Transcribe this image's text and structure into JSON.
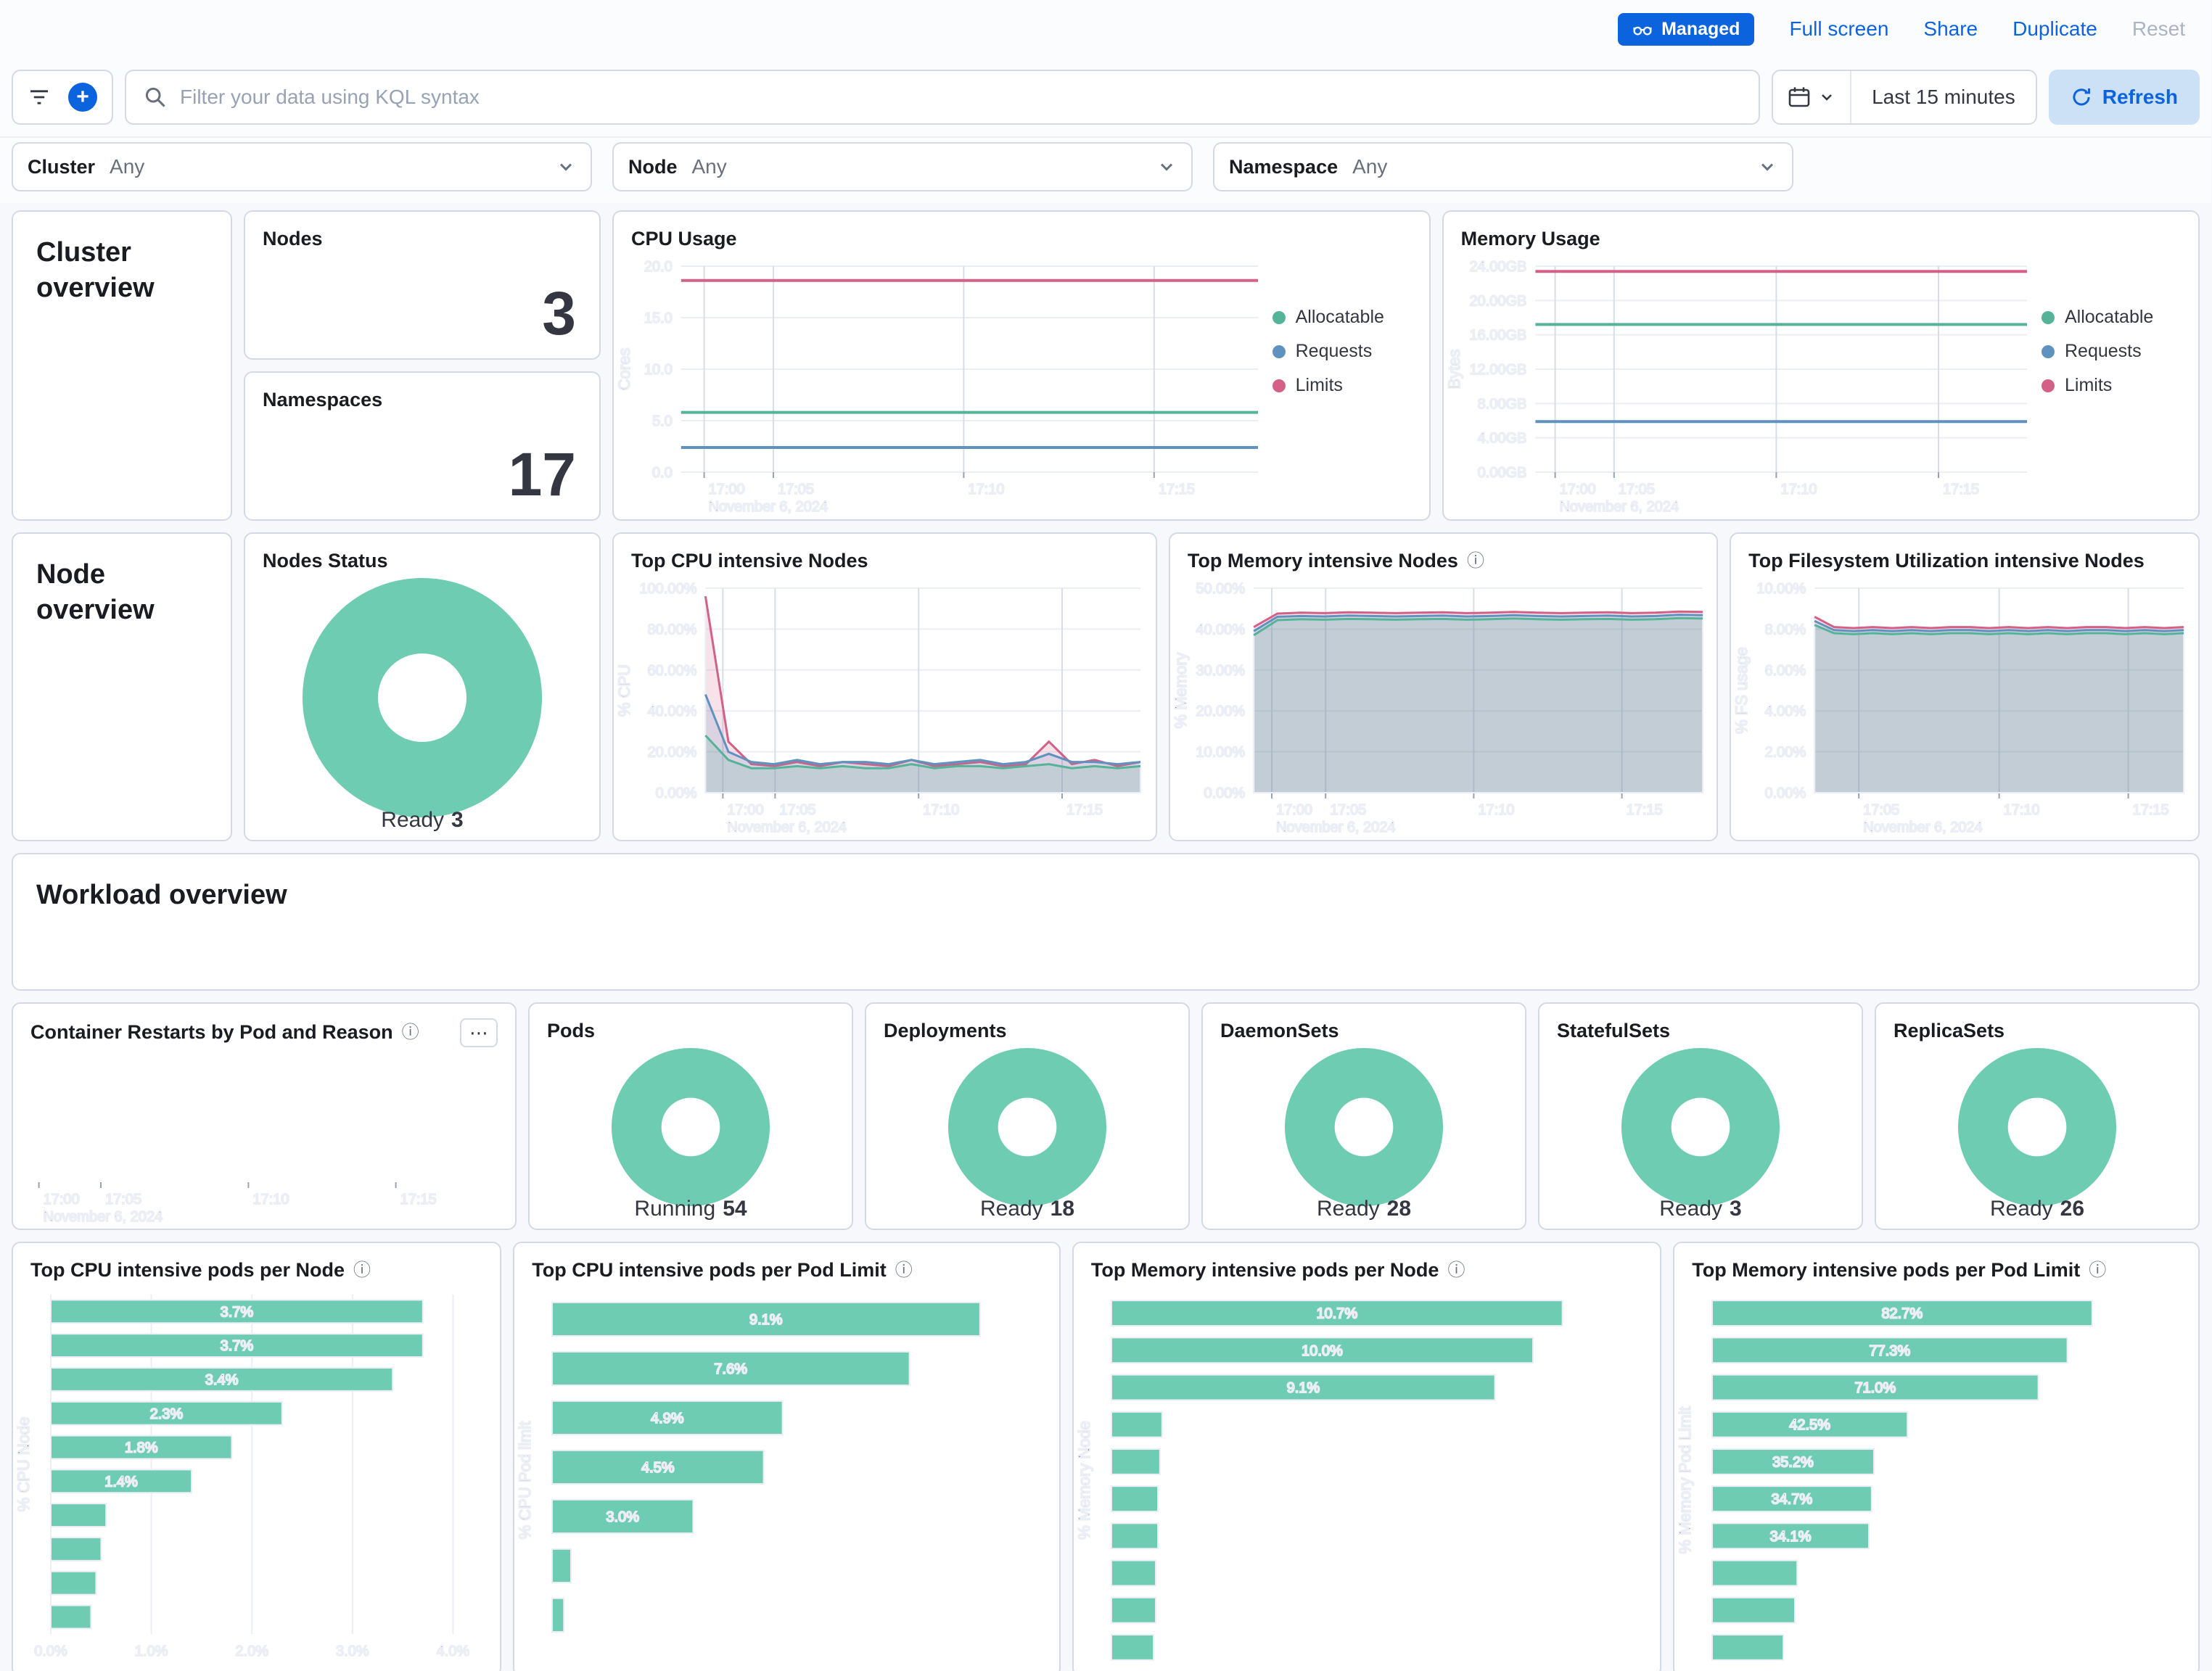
{
  "topbar": {
    "managed": "Managed",
    "full_screen": "Full screen",
    "share": "Share",
    "duplicate": "Duplicate",
    "reset": "Reset"
  },
  "querybar": {
    "placeholder": "Filter your data using KQL syntax",
    "time_range": "Last 15 minutes",
    "refresh": "Refresh"
  },
  "filters": [
    {
      "label": "Cluster",
      "value": "Any"
    },
    {
      "label": "Node",
      "value": "Any"
    },
    {
      "label": "Namespace",
      "value": "Any"
    }
  ],
  "sections": {
    "cluster": "Cluster overview",
    "node": "Node overview",
    "workload": "Workload overview"
  },
  "stats": [
    {
      "title": "Nodes",
      "value": "3"
    },
    {
      "title": "Namespaces",
      "value": "17"
    }
  ],
  "icons": {
    "info": "ⓘ",
    "options": "⋯"
  },
  "colors": {
    "accent_blue": "#0B64DD",
    "green": "#6DCCB1",
    "allocatable": "#54B399",
    "requests": "#6092C0",
    "limits": "#D36086"
  },
  "chart_data": [
    {
      "id": "cpu_usage",
      "type": "line",
      "title": "CPU Usage",
      "ylabel": "Cores",
      "ymax": 20,
      "yticks": [
        {
          "v": 20,
          "label": "20.0"
        },
        {
          "v": 15,
          "label": "15.0"
        },
        {
          "v": 10,
          "label": "10.0"
        },
        {
          "v": 5,
          "label": "5.0"
        },
        {
          "v": 0,
          "label": "0.0"
        }
      ],
      "xticks": [
        {
          "f": 0.04,
          "label": "17:00"
        },
        {
          "f": 0.16,
          "label": "17:05"
        },
        {
          "f": 0.49,
          "label": "17:10"
        },
        {
          "f": 0.82,
          "label": "17:15"
        }
      ],
      "xsub": "November 6, 2024",
      "series": [
        {
          "name": "Allocatable",
          "color": "#54B399",
          "value": 5.8
        },
        {
          "name": "Requests",
          "color": "#6092C0",
          "value": 2.4
        },
        {
          "name": "Limits",
          "color": "#D36086",
          "value": 18.6
        }
      ]
    },
    {
      "id": "memory_usage",
      "type": "line",
      "title": "Memory Usage",
      "ylabel": "Bytes",
      "ymax": 24,
      "yticks": [
        {
          "v": 24,
          "label": "24.00GB"
        },
        {
          "v": 20,
          "label": "20.00GB"
        },
        {
          "v": 16,
          "label": "16.00GB"
        },
        {
          "v": 12,
          "label": "12.00GB"
        },
        {
          "v": 8,
          "label": "8.00GB"
        },
        {
          "v": 4,
          "label": "4.00GB"
        },
        {
          "v": 0,
          "label": "0.00GB"
        }
      ],
      "xticks": [
        {
          "f": 0.04,
          "label": "17:00"
        },
        {
          "f": 0.16,
          "label": "17:05"
        },
        {
          "f": 0.49,
          "label": "17:10"
        },
        {
          "f": 0.82,
          "label": "17:15"
        }
      ],
      "xsub": "November 6, 2024",
      "series": [
        {
          "name": "Allocatable",
          "color": "#54B399",
          "value": 17.2
        },
        {
          "name": "Requests",
          "color": "#6092C0",
          "value": 5.9
        },
        {
          "name": "Limits",
          "color": "#D36086",
          "value": 23.4
        }
      ]
    },
    {
      "id": "nodes_status",
      "type": "donut",
      "title": "Nodes Status",
      "label": "Ready",
      "value": 3,
      "color": "#6DCCB1"
    },
    {
      "id": "top_cpu_nodes",
      "type": "area",
      "title": "Top CPU intensive Nodes",
      "ylabel": "% CPU",
      "ymax": 100,
      "yticks": [
        {
          "v": 100,
          "label": "100.00%"
        },
        {
          "v": 80,
          "label": "80.00%"
        },
        {
          "v": 60,
          "label": "60.00%"
        },
        {
          "v": 40,
          "label": "40.00%"
        },
        {
          "v": 20,
          "label": "20.00%"
        },
        {
          "v": 0,
          "label": "0.00%"
        }
      ],
      "xticks": [
        {
          "f": 0.04,
          "label": "17:00"
        },
        {
          "f": 0.16,
          "label": "17:05"
        },
        {
          "f": 0.49,
          "label": "17:10"
        },
        {
          "f": 0.82,
          "label": "17:15"
        }
      ],
      "xsub": "November 6, 2024",
      "series": [
        {
          "color": "#D36086",
          "values": [
            96,
            25,
            14,
            13,
            15,
            13,
            15,
            14,
            13,
            16,
            13,
            14,
            15,
            13,
            14,
            25,
            14,
            16,
            13,
            15
          ]
        },
        {
          "color": "#6092C0",
          "values": [
            48,
            20,
            15,
            14,
            16,
            14,
            15,
            15,
            14,
            16,
            14,
            15,
            16,
            14,
            15,
            19,
            15,
            15,
            14,
            15
          ]
        },
        {
          "color": "#54B399",
          "values": [
            28,
            16,
            12,
            12,
            13,
            12,
            13,
            12,
            12,
            14,
            12,
            13,
            13,
            12,
            13,
            14,
            12,
            13,
            12,
            13
          ]
        }
      ]
    },
    {
      "id": "top_memory_nodes",
      "type": "area",
      "title": "Top Memory intensive Nodes",
      "ylabel": "% Memory",
      "ymax": 50,
      "yticks": [
        {
          "v": 50,
          "label": "50.00%"
        },
        {
          "v": 40,
          "label": "40.00%"
        },
        {
          "v": 30,
          "label": "30.00%"
        },
        {
          "v": 20,
          "label": "20.00%"
        },
        {
          "v": 10,
          "label": "10.00%"
        },
        {
          "v": 0,
          "label": "0.00%"
        }
      ],
      "xticks": [
        {
          "f": 0.04,
          "label": "17:00"
        },
        {
          "f": 0.16,
          "label": "17:05"
        },
        {
          "f": 0.49,
          "label": "17:10"
        },
        {
          "f": 0.82,
          "label": "17:15"
        }
      ],
      "xsub": "November 6, 2024",
      "series": [
        {
          "color": "#D36086",
          "values": [
            40.5,
            43.8,
            44,
            43.9,
            44.1,
            44,
            43.9,
            44,
            44.1,
            43.9,
            44,
            44.2,
            44,
            43.9,
            44,
            44.1,
            43.9,
            44,
            44.3,
            44.2
          ]
        },
        {
          "color": "#6092C0",
          "values": [
            39.5,
            43,
            43.2,
            43.1,
            43.3,
            43.2,
            43.1,
            43.2,
            43.3,
            43.1,
            43.2,
            43.4,
            43.2,
            43.1,
            43.2,
            43.3,
            43.1,
            43.2,
            43.5,
            43.4
          ]
        },
        {
          "color": "#54B399",
          "values": [
            38.5,
            42.2,
            42.4,
            42.3,
            42.5,
            42.4,
            42.3,
            42.4,
            42.5,
            42.3,
            42.4,
            42.6,
            42.4,
            42.3,
            42.4,
            42.5,
            42.3,
            42.4,
            42.7,
            42.6
          ]
        }
      ]
    },
    {
      "id": "top_fs_nodes",
      "type": "area",
      "title": "Top Filesystem Utilization intensive Nodes",
      "ylabel": "% FS usage",
      "ymax": 10,
      "yticks": [
        {
          "v": 10,
          "label": "10.00%"
        },
        {
          "v": 8,
          "label": "8.00%"
        },
        {
          "v": 6,
          "label": "6.00%"
        },
        {
          "v": 4,
          "label": "4.00%"
        },
        {
          "v": 2,
          "label": "2.00%"
        },
        {
          "v": 0,
          "label": "0.00%"
        }
      ],
      "xticks": [
        {
          "f": 0.12,
          "label": "17:05"
        },
        {
          "f": 0.5,
          "label": "17:10"
        },
        {
          "f": 0.85,
          "label": "17:15"
        }
      ],
      "xsub": "November 6, 2024",
      "series": [
        {
          "color": "#D36086",
          "values": [
            8.6,
            8.1,
            8.05,
            8.1,
            8.05,
            8.1,
            8.05,
            8.1,
            8.1,
            8.05,
            8.1,
            8.05,
            8.1,
            8.05,
            8.1,
            8.1,
            8.05,
            8.1,
            8.05,
            8.1
          ]
        },
        {
          "color": "#6092C0",
          "values": [
            8.4,
            7.95,
            7.9,
            7.95,
            7.9,
            7.95,
            7.9,
            7.95,
            7.95,
            7.9,
            7.95,
            7.9,
            7.95,
            7.9,
            7.95,
            7.95,
            7.9,
            7.95,
            7.9,
            7.95
          ]
        },
        {
          "color": "#54B399",
          "values": [
            8.2,
            7.8,
            7.75,
            7.8,
            7.75,
            7.8,
            7.75,
            7.8,
            7.8,
            7.75,
            7.8,
            7.75,
            7.8,
            7.75,
            7.8,
            7.8,
            7.75,
            7.8,
            7.75,
            7.8
          ]
        }
      ]
    },
    {
      "id": "container_restarts",
      "type": "line",
      "title": "Container Restarts by Pod and Reason",
      "ymax": 1,
      "yticks": [],
      "xticks": [
        {
          "f": 0.03,
          "label": "17:00"
        },
        {
          "f": 0.16,
          "label": "17:05"
        },
        {
          "f": 0.47,
          "label": "17:10"
        },
        {
          "f": 0.78,
          "label": "17:15"
        }
      ],
      "xsub": "November 6, 2024",
      "series": []
    },
    {
      "id": "pods",
      "type": "donut",
      "title": "Pods",
      "label": "Running",
      "value": 54,
      "color": "#6DCCB1"
    },
    {
      "id": "deployments",
      "type": "donut",
      "title": "Deployments",
      "label": "Ready",
      "value": 18,
      "color": "#6DCCB1"
    },
    {
      "id": "daemonsets",
      "type": "donut",
      "title": "DaemonSets",
      "label": "Ready",
      "value": 28,
      "color": "#6DCCB1"
    },
    {
      "id": "statefulsets",
      "type": "donut",
      "title": "StatefulSets",
      "label": "Ready",
      "value": 3,
      "color": "#6DCCB1"
    },
    {
      "id": "replicasets",
      "type": "donut",
      "title": "ReplicaSets",
      "label": "Ready",
      "value": 26,
      "color": "#6DCCB1"
    },
    {
      "id": "top_cpu_pods_node",
      "type": "hbar",
      "title": "Top CPU intensive pods per Node",
      "ylabel": "% CPU Node",
      "xmax": 4.3,
      "xticks": [
        {
          "v": 0,
          "label": "0.0%"
        },
        {
          "v": 1,
          "label": "1.0%"
        },
        {
          "v": 2,
          "label": "2.0%"
        },
        {
          "v": 3,
          "label": "3.0%"
        },
        {
          "v": 4,
          "label": "4.0%"
        }
      ],
      "values": [
        3.7,
        3.7,
        3.4,
        2.3,
        1.8,
        1.4,
        0.55,
        0.5,
        0.45,
        0.4
      ],
      "labels": [
        "3.7%",
        "3.7%",
        "3.4%",
        "2.3%",
        "1.8%",
        "1.4%",
        "",
        "",
        "",
        ""
      ]
    },
    {
      "id": "top_cpu_pods_limit",
      "type": "hbar",
      "title": "Top CPU intensive pods per Pod Limit",
      "ylabel": "% CPU Pod limit",
      "xmax": 10.4,
      "values": [
        9.1,
        7.6,
        4.9,
        4.5,
        3.0,
        0.4,
        0.25
      ],
      "labels": [
        "9.1%",
        "7.6%",
        "4.9%",
        "4.5%",
        "3.0%",
        "",
        ""
      ]
    },
    {
      "id": "top_memory_pods_node",
      "type": "hbar",
      "title": "Top Memory intensive pods per Node",
      "ylabel": "% Memory Node",
      "xmax": 12.6,
      "values": [
        10.7,
        10.0,
        9.1,
        1.2,
        1.15,
        1.1,
        1.1,
        1.05,
        1.05,
        1.0
      ],
      "labels": [
        "10.7%",
        "10.0%",
        "9.1%",
        "",
        "",
        "",
        "",
        "",
        "",
        ""
      ]
    },
    {
      "id": "top_memory_pods_limit",
      "type": "hbar",
      "title": "Top Memory intensive pods per Pod Limit",
      "ylabel": "% Memory Pod Limit",
      "xmax": 102,
      "values": [
        82.7,
        77.3,
        71.0,
        42.5,
        35.2,
        34.7,
        34.1,
        18.5,
        18.0,
        15.5
      ],
      "labels": [
        "82.7%",
        "77.3%",
        "71.0%",
        "42.5%",
        "35.2%",
        "34.7%",
        "34.1%",
        "",
        "",
        ""
      ]
    }
  ]
}
